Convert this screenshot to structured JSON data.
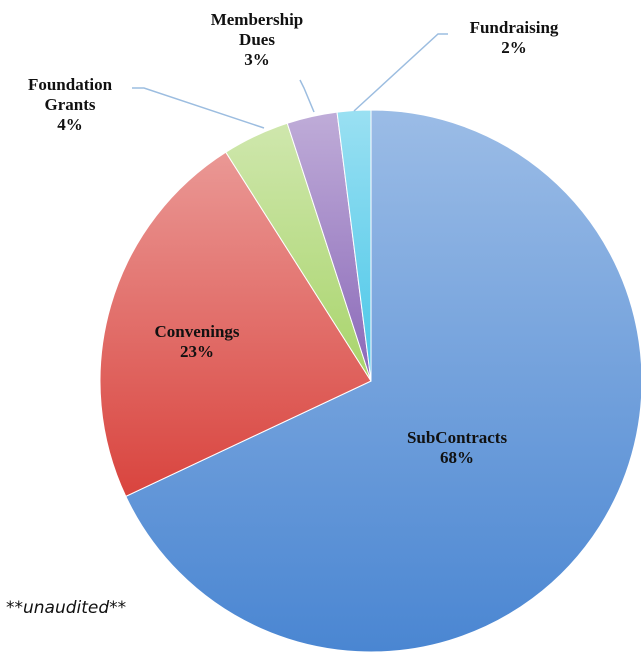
{
  "chart_data": {
    "type": "pie",
    "categories": [
      "SubContracts",
      "Convenings",
      "Foundation Grants",
      "Membership Dues",
      "Fundraising"
    ],
    "values": [
      68,
      23,
      4,
      3,
      2
    ],
    "value_labels": [
      "68%",
      "23%",
      "4%",
      "3%",
      "2%"
    ],
    "colors": [
      "#4a86d2",
      "#d9443e",
      "#a8d46a",
      "#8a68b8",
      "#48c6e8"
    ],
    "annotation": "**unaudited**"
  }
}
